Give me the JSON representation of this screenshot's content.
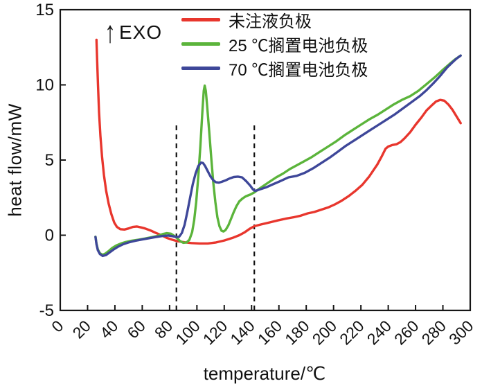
{
  "figure": {
    "background": "#ffffff",
    "exo_annotation": {
      "arrow": "↑",
      "label": "EXO"
    }
  },
  "chart_data": {
    "type": "line",
    "title": "",
    "xlabel": "temperature/℃",
    "ylabel": "heat flow/mW",
    "xlim": [
      0,
      300
    ],
    "ylim": [
      -5,
      15
    ],
    "x_ticks": [
      0,
      20,
      40,
      60,
      80,
      100,
      120,
      140,
      160,
      180,
      200,
      220,
      240,
      260,
      280,
      300
    ],
    "y_ticks": [
      -5,
      0,
      5,
      10,
      15
    ],
    "grid": false,
    "legend_position": "top-right",
    "axis_color": "#161616",
    "tick_label_color": "#111111",
    "dashed_marker_lines": {
      "x_values": [
        85,
        142
      ],
      "y_bottom": -5,
      "y_top": 7.5,
      "color": "#111111"
    },
    "series": [
      {
        "name": "未注液负极",
        "color": "#e8362d",
        "points": [
          [
            26.5,
            13.0
          ],
          [
            27,
            11.6
          ],
          [
            27.6,
            10.0
          ],
          [
            28.4,
            8.2
          ],
          [
            29.4,
            6.6
          ],
          [
            30.6,
            5.2
          ],
          [
            32,
            4.0
          ],
          [
            33.6,
            2.95
          ],
          [
            35.4,
            2.1
          ],
          [
            37.4,
            1.4
          ],
          [
            39.5,
            0.85
          ],
          [
            41.5,
            0.55
          ],
          [
            44,
            0.4
          ],
          [
            47,
            0.38
          ],
          [
            50,
            0.45
          ],
          [
            53,
            0.55
          ],
          [
            56,
            0.58
          ],
          [
            59,
            0.52
          ],
          [
            62,
            0.45
          ],
          [
            66,
            0.32
          ],
          [
            70,
            0.15
          ],
          [
            74,
            0.0
          ],
          [
            78,
            -0.18
          ],
          [
            82,
            -0.3
          ],
          [
            86,
            -0.4
          ],
          [
            91,
            -0.47
          ],
          [
            96,
            -0.52
          ],
          [
            102,
            -0.55
          ],
          [
            108,
            -0.55
          ],
          [
            114,
            -0.48
          ],
          [
            120,
            -0.35
          ],
          [
            126,
            -0.18
          ],
          [
            131,
            0.0
          ],
          [
            135,
            0.2
          ],
          [
            139,
            0.45
          ],
          [
            142,
            0.6
          ],
          [
            147,
            0.72
          ],
          [
            153,
            0.85
          ],
          [
            159,
            0.98
          ],
          [
            165,
            1.1
          ],
          [
            171,
            1.2
          ],
          [
            176,
            1.3
          ],
          [
            181,
            1.45
          ],
          [
            186,
            1.55
          ],
          [
            191,
            1.7
          ],
          [
            196,
            1.85
          ],
          [
            201,
            2.05
          ],
          [
            206,
            2.3
          ],
          [
            211,
            2.6
          ],
          [
            216,
            2.95
          ],
          [
            221,
            3.35
          ],
          [
            226,
            3.9
          ],
          [
            229,
            4.3
          ],
          [
            232,
            4.7
          ],
          [
            235,
            5.2
          ],
          [
            238,
            5.75
          ],
          [
            240,
            5.9
          ],
          [
            243,
            6.0
          ],
          [
            246,
            6.05
          ],
          [
            249,
            6.2
          ],
          [
            252,
            6.45
          ],
          [
            256,
            6.85
          ],
          [
            260,
            7.35
          ],
          [
            264,
            7.8
          ],
          [
            268,
            8.3
          ],
          [
            272,
            8.65
          ],
          [
            275,
            8.9
          ],
          [
            278,
            9.0
          ],
          [
            281,
            8.95
          ],
          [
            284,
            8.7
          ],
          [
            287,
            8.35
          ],
          [
            290,
            7.9
          ],
          [
            293,
            7.45
          ]
        ]
      },
      {
        "name": "25 ℃搁置电池负极",
        "color": "#5bb43b",
        "points": [
          [
            25.8,
            -0.1
          ],
          [
            26.5,
            -0.55
          ],
          [
            27.5,
            -0.95
          ],
          [
            29,
            -1.2
          ],
          [
            31,
            -1.3
          ],
          [
            33,
            -1.22
          ],
          [
            35.5,
            -1.05
          ],
          [
            38,
            -0.85
          ],
          [
            41,
            -0.68
          ],
          [
            44.5,
            -0.55
          ],
          [
            48,
            -0.45
          ],
          [
            52,
            -0.37
          ],
          [
            57,
            -0.3
          ],
          [
            62,
            -0.22
          ],
          [
            67,
            -0.13
          ],
          [
            71,
            -0.05
          ],
          [
            75,
            0.08
          ],
          [
            78,
            0.14
          ],
          [
            81,
            0.1
          ],
          [
            83.5,
            -0.05
          ],
          [
            85.5,
            -0.2
          ],
          [
            87.5,
            -0.38
          ],
          [
            90,
            -0.5
          ],
          [
            92.5,
            -0.48
          ],
          [
            94.5,
            -0.3
          ],
          [
            96.5,
            0.2
          ],
          [
            98,
            1.0
          ],
          [
            99.5,
            2.2
          ],
          [
            101,
            3.9
          ],
          [
            102.5,
            5.9
          ],
          [
            104,
            8.2
          ],
          [
            105,
            9.6
          ],
          [
            105.7,
            9.95
          ],
          [
            106.5,
            9.6
          ],
          [
            107.5,
            8.6
          ],
          [
            109,
            6.9
          ],
          [
            110.5,
            5.1
          ],
          [
            112,
            3.5
          ],
          [
            113.5,
            2.2
          ],
          [
            115,
            1.2
          ],
          [
            116.5,
            0.6
          ],
          [
            118,
            0.3
          ],
          [
            119.5,
            0.25
          ],
          [
            121,
            0.35
          ],
          [
            123,
            0.65
          ],
          [
            125,
            1.1
          ],
          [
            127,
            1.55
          ],
          [
            129,
            1.95
          ],
          [
            131,
            2.25
          ],
          [
            133.5,
            2.45
          ],
          [
            136,
            2.6
          ],
          [
            139,
            2.7
          ],
          [
            142,
            2.85
          ],
          [
            145,
            3.05
          ],
          [
            149,
            3.3
          ],
          [
            153,
            3.55
          ],
          [
            158,
            3.85
          ],
          [
            163,
            4.1
          ],
          [
            168,
            4.4
          ],
          [
            173,
            4.65
          ],
          [
            178,
            4.9
          ],
          [
            184,
            5.2
          ],
          [
            190,
            5.55
          ],
          [
            196,
            5.9
          ],
          [
            202,
            6.25
          ],
          [
            208,
            6.65
          ],
          [
            214,
            7.0
          ],
          [
            220,
            7.35
          ],
          [
            226,
            7.7
          ],
          [
            232,
            8.0
          ],
          [
            238,
            8.35
          ],
          [
            244,
            8.7
          ],
          [
            250,
            9.0
          ],
          [
            256,
            9.25
          ],
          [
            262,
            9.6
          ],
          [
            268,
            10.05
          ],
          [
            274,
            10.5
          ],
          [
            280,
            11.0
          ],
          [
            285,
            11.4
          ],
          [
            289,
            11.7
          ],
          [
            293,
            11.95
          ]
        ]
      },
      {
        "name": "70 ℃搁置电池负极",
        "color": "#3e4799",
        "points": [
          [
            25.8,
            -0.12
          ],
          [
            26.5,
            -0.6
          ],
          [
            27.5,
            -1.0
          ],
          [
            29,
            -1.25
          ],
          [
            31,
            -1.38
          ],
          [
            33.5,
            -1.32
          ],
          [
            36,
            -1.15
          ],
          [
            39,
            -0.95
          ],
          [
            42,
            -0.78
          ],
          [
            46,
            -0.6
          ],
          [
            50,
            -0.48
          ],
          [
            55,
            -0.37
          ],
          [
            60,
            -0.28
          ],
          [
            65,
            -0.2
          ],
          [
            70,
            -0.12
          ],
          [
            75,
            -0.05
          ],
          [
            79,
            -0.02
          ],
          [
            82,
            -0.06
          ],
          [
            85,
            -0.12
          ],
          [
            87,
            -0.1
          ],
          [
            89,
            0.15
          ],
          [
            91,
            0.7
          ],
          [
            93,
            1.55
          ],
          [
            95,
            2.5
          ],
          [
            97,
            3.4
          ],
          [
            99,
            4.1
          ],
          [
            101,
            4.6
          ],
          [
            103,
            4.83
          ],
          [
            104.5,
            4.8
          ],
          [
            106,
            4.6
          ],
          [
            108,
            4.25
          ],
          [
            110,
            3.9
          ],
          [
            112,
            3.65
          ],
          [
            114,
            3.52
          ],
          [
            116,
            3.5
          ],
          [
            118,
            3.55
          ],
          [
            121,
            3.65
          ],
          [
            124,
            3.78
          ],
          [
            127,
            3.87
          ],
          [
            130,
            3.9
          ],
          [
            133,
            3.85
          ],
          [
            136,
            3.6
          ],
          [
            139,
            3.3
          ],
          [
            141,
            3.05
          ],
          [
            142.5,
            2.95
          ],
          [
            144,
            2.98
          ],
          [
            147,
            3.08
          ],
          [
            151,
            3.2
          ],
          [
            156,
            3.4
          ],
          [
            161,
            3.6
          ],
          [
            167,
            3.85
          ],
          [
            173,
            3.95
          ],
          [
            179,
            4.15
          ],
          [
            185,
            4.45
          ],
          [
            191,
            4.8
          ],
          [
            197,
            5.15
          ],
          [
            203,
            5.55
          ],
          [
            209,
            5.95
          ],
          [
            215,
            6.3
          ],
          [
            221,
            6.65
          ],
          [
            227,
            7.0
          ],
          [
            233,
            7.35
          ],
          [
            239,
            7.7
          ],
          [
            245,
            8.05
          ],
          [
            251,
            8.45
          ],
          [
            257,
            8.85
          ],
          [
            263,
            9.25
          ],
          [
            268,
            9.65
          ],
          [
            273,
            10.1
          ],
          [
            278,
            10.6
          ],
          [
            283,
            11.15
          ],
          [
            287,
            11.5
          ],
          [
            290,
            11.75
          ],
          [
            293,
            11.95
          ]
        ]
      }
    ]
  }
}
